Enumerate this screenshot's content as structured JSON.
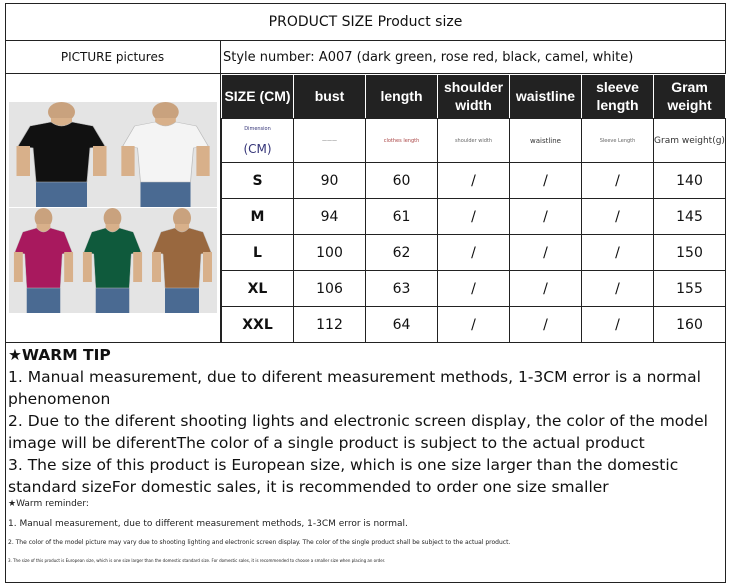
{
  "title": "PRODUCT SIZE Product size",
  "picture_label": "PICTURE pictures",
  "style_number": "Style number: A007 (dark green, rose red, black, camel, white)",
  "photos": [
    {
      "color": "black",
      "hex": "#111111"
    },
    {
      "color": "white",
      "hex": "#f4f4f4"
    },
    {
      "color": "rose red",
      "hex": "#a8195e"
    },
    {
      "color": "dark green",
      "hex": "#0f5a3c"
    },
    {
      "color": "camel",
      "hex": "#99683f"
    }
  ],
  "table": {
    "headers": [
      "SIZE (CM)",
      "bust",
      "length",
      "shoulder width",
      "waistline",
      "sleeve length",
      "Gram weight"
    ],
    "dimension_row": {
      "size_small": "Dimension",
      "size": "(CM)",
      "bust": "———",
      "length": "clothes length",
      "shoulder": "shoulder width",
      "waistline": "waistline",
      "sleeve": "Sleeve Length",
      "gram": "Gram weight(g)"
    },
    "rows": [
      {
        "size": "S",
        "bust": "90",
        "length": "60",
        "shoulder": "/",
        "waistline": "/",
        "sleeve": "/",
        "gram": "140"
      },
      {
        "size": "M",
        "bust": "94",
        "length": "61",
        "shoulder": "/",
        "waistline": "/",
        "sleeve": "/",
        "gram": "145"
      },
      {
        "size": "L",
        "bust": "100",
        "length": "62",
        "shoulder": "/",
        "waistline": "/",
        "sleeve": "/",
        "gram": "150"
      },
      {
        "size": "XL",
        "bust": "106",
        "length": "63",
        "shoulder": "/",
        "waistline": "/",
        "sleeve": "/",
        "gram": "155"
      },
      {
        "size": "XXL",
        "bust": "112",
        "length": "64",
        "shoulder": "/",
        "waistline": "/",
        "sleeve": "/",
        "gram": "160"
      }
    ]
  },
  "warm_tip": {
    "title": "★WARM TIP",
    "items": [
      "1. Manual measurement, due to diferent measurement methods, 1-3CM error is a normal phenomenon",
      "2. Due to the diferent shooting lights and electronic screen display, the color of the model image will be diferentThe color of a single product is subject to the actual product",
      "3. The size of this product is European size, which is one size larger than the domestic standard sizeFor domestic sales, it is recommended to order one size smaller"
    ]
  },
  "warm_reminder": {
    "title": "★Warm reminder:",
    "items": [
      "1. Manual measurement, due to different measurement methods, 1-3CM error is normal.",
      "2. The color of the model picture may vary due to shooting lighting and electronic screen display. The color of the single product shall be subject to the actual product.",
      "3. The size of this product is European size, which is one size larger than the domestic standard size. For domestic sales, it is recommended to choose a smaller size when placing an order."
    ]
  }
}
